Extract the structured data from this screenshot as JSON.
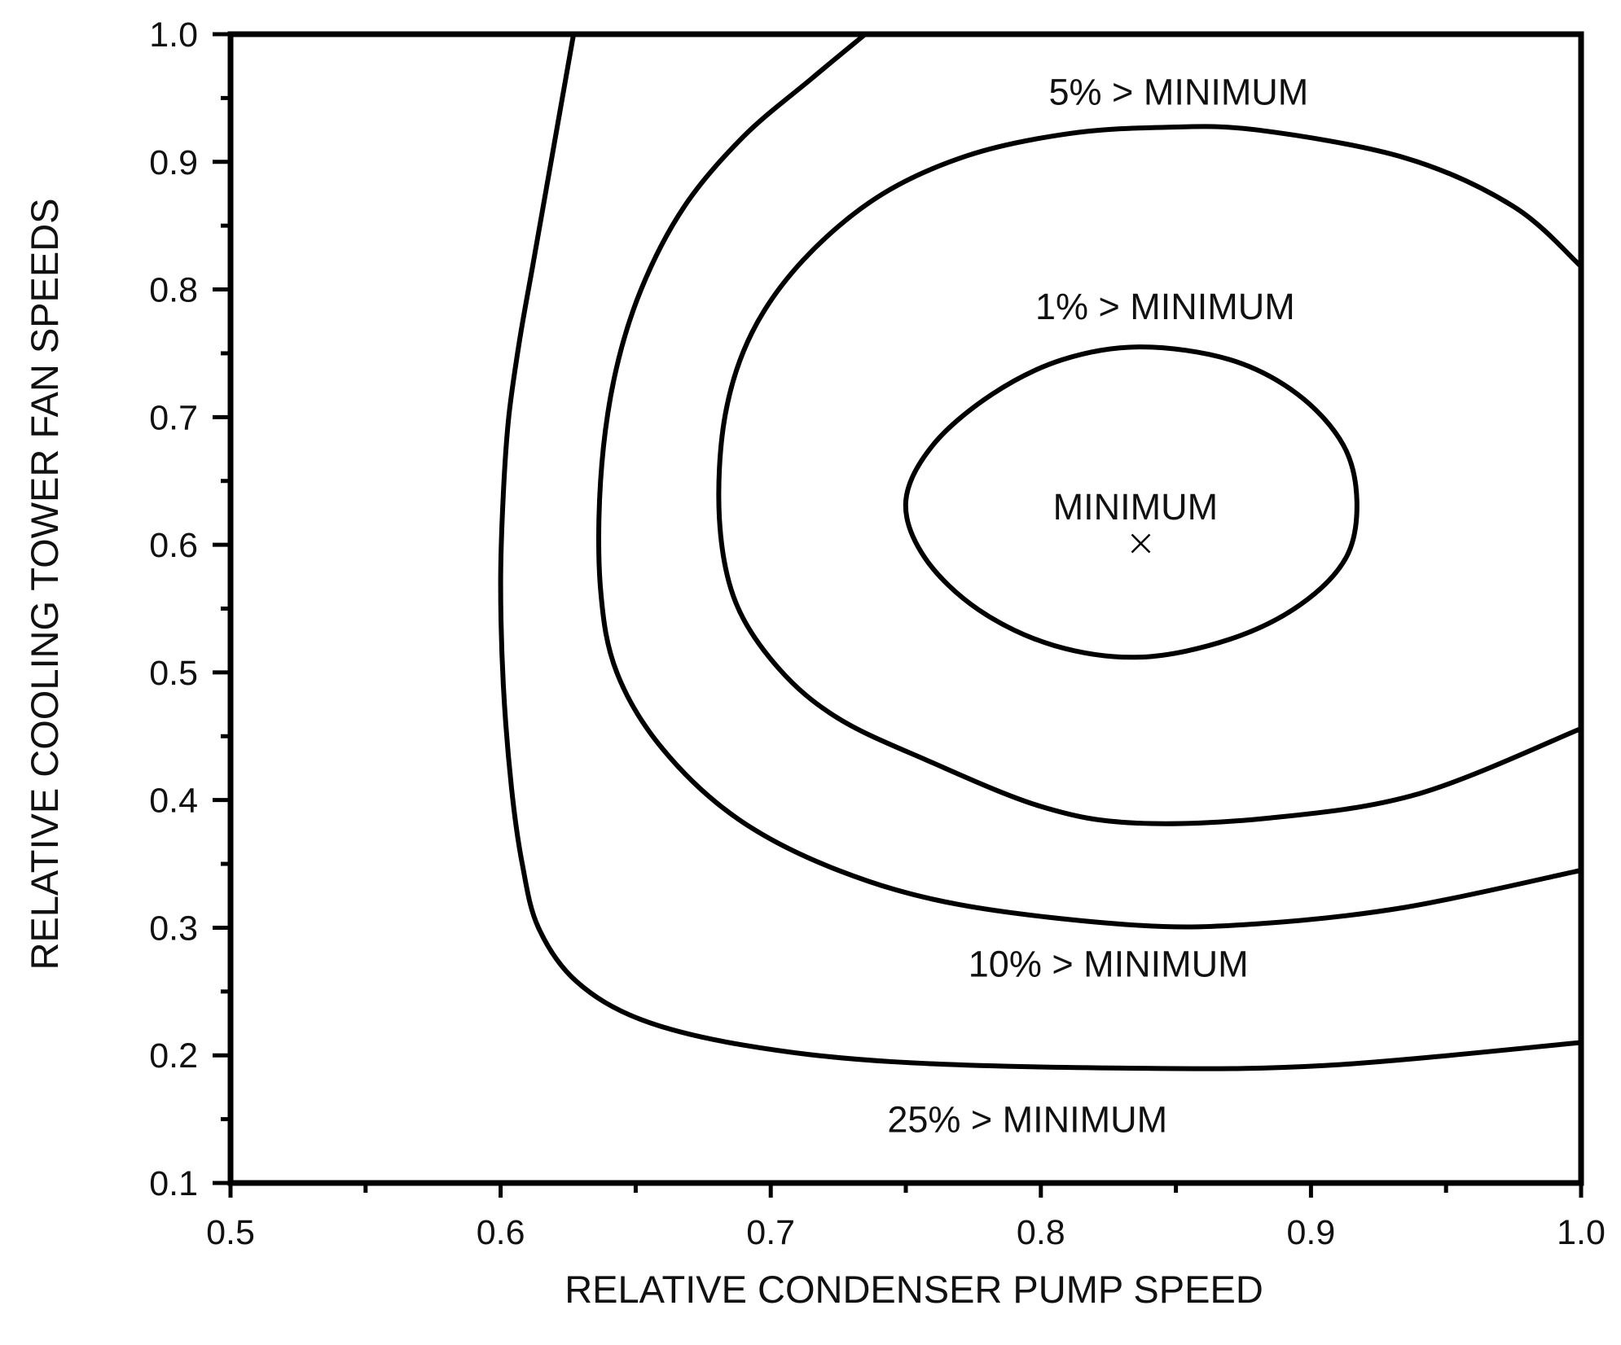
{
  "chart_data": {
    "type": "contour",
    "title": "",
    "xlabel": "RELATIVE CONDENSER PUMP SPEED",
    "ylabel": "RELATIVE COOLING TOWER FAN SPEEDS",
    "xlim": [
      0.5,
      1.0
    ],
    "ylim": [
      0.1,
      1.0
    ],
    "grid": false,
    "x_ticks": [
      "0.5",
      "0.6",
      "0.7",
      "0.8",
      "0.9",
      "1.0"
    ],
    "y_ticks": [
      "0.1",
      "0.2",
      "0.3",
      "0.4",
      "0.5",
      "0.6",
      "0.7",
      "0.8",
      "0.9",
      "1.0"
    ],
    "minimum": {
      "label": "MINIMUM",
      "x": 0.837,
      "y": 0.601
    },
    "contours": [
      {
        "label": "1% > MINIMUM",
        "closed": true,
        "points": [
          [
            0.837,
            0.755
          ],
          [
            0.87,
            0.745
          ],
          [
            0.895,
            0.718
          ],
          [
            0.912,
            0.678
          ],
          [
            0.917,
            0.634
          ],
          [
            0.913,
            0.59
          ],
          [
            0.896,
            0.553
          ],
          [
            0.87,
            0.526
          ],
          [
            0.837,
            0.512
          ],
          [
            0.805,
            0.521
          ],
          [
            0.777,
            0.549
          ],
          [
            0.757,
            0.59
          ],
          [
            0.75,
            0.634
          ],
          [
            0.76,
            0.678
          ],
          [
            0.782,
            0.718
          ],
          [
            0.808,
            0.745
          ]
        ]
      },
      {
        "label": "5% > MINIMUM",
        "closed": false,
        "points": [
          [
            1.0,
            0.818
          ],
          [
            0.975,
            0.865
          ],
          [
            0.935,
            0.903
          ],
          [
            0.88,
            0.925
          ],
          [
            0.845,
            0.927
          ],
          [
            0.81,
            0.922
          ],
          [
            0.773,
            0.905
          ],
          [
            0.74,
            0.873
          ],
          [
            0.712,
            0.823
          ],
          [
            0.693,
            0.766
          ],
          [
            0.683,
            0.7
          ],
          [
            0.681,
            0.62
          ],
          [
            0.687,
            0.555
          ],
          [
            0.703,
            0.503
          ],
          [
            0.725,
            0.464
          ],
          [
            0.758,
            0.431
          ],
          [
            0.8,
            0.395
          ],
          [
            0.835,
            0.382
          ],
          [
            0.885,
            0.386
          ],
          [
            0.94,
            0.405
          ],
          [
            1.0,
            0.456
          ]
        ]
      },
      {
        "label": "10% > MINIMUM",
        "closed": false,
        "points": [
          [
            0.735,
            1.0
          ],
          [
            0.715,
            0.965
          ],
          [
            0.69,
            0.92
          ],
          [
            0.668,
            0.865
          ],
          [
            0.652,
            0.8
          ],
          [
            0.642,
            0.73
          ],
          [
            0.637,
            0.65
          ],
          [
            0.637,
            0.565
          ],
          [
            0.643,
            0.5
          ],
          [
            0.66,
            0.44
          ],
          [
            0.688,
            0.385
          ],
          [
            0.725,
            0.345
          ],
          [
            0.77,
            0.318
          ],
          [
            0.835,
            0.302
          ],
          [
            0.88,
            0.303
          ],
          [
            0.935,
            0.316
          ],
          [
            1.0,
            0.345
          ]
        ]
      },
      {
        "label": "25% > MINIMUM",
        "closed": false,
        "points": [
          [
            0.627,
            1.0
          ],
          [
            0.622,
            0.94
          ],
          [
            0.617,
            0.88
          ],
          [
            0.612,
            0.82
          ],
          [
            0.607,
            0.76
          ],
          [
            0.603,
            0.7
          ],
          [
            0.601,
            0.64
          ],
          [
            0.6,
            0.57
          ],
          [
            0.601,
            0.49
          ],
          [
            0.604,
            0.41
          ],
          [
            0.608,
            0.35
          ],
          [
            0.614,
            0.3
          ],
          [
            0.628,
            0.258
          ],
          [
            0.652,
            0.228
          ],
          [
            0.69,
            0.208
          ],
          [
            0.745,
            0.195
          ],
          [
            0.83,
            0.19
          ],
          [
            0.905,
            0.192
          ],
          [
            1.0,
            0.21
          ]
        ]
      }
    ],
    "contour_labels": [
      {
        "text": "5% > MINIMUM",
        "x": 0.851,
        "y": 0.955
      },
      {
        "text": "1% > MINIMUM",
        "x": 0.846,
        "y": 0.787
      },
      {
        "text": "MINIMUM",
        "x": 0.835,
        "y": 0.63
      },
      {
        "text": "10% > MINIMUM",
        "x": 0.825,
        "y": 0.272
      },
      {
        "text": "25% > MINIMUM",
        "x": 0.795,
        "y": 0.15
      }
    ]
  }
}
